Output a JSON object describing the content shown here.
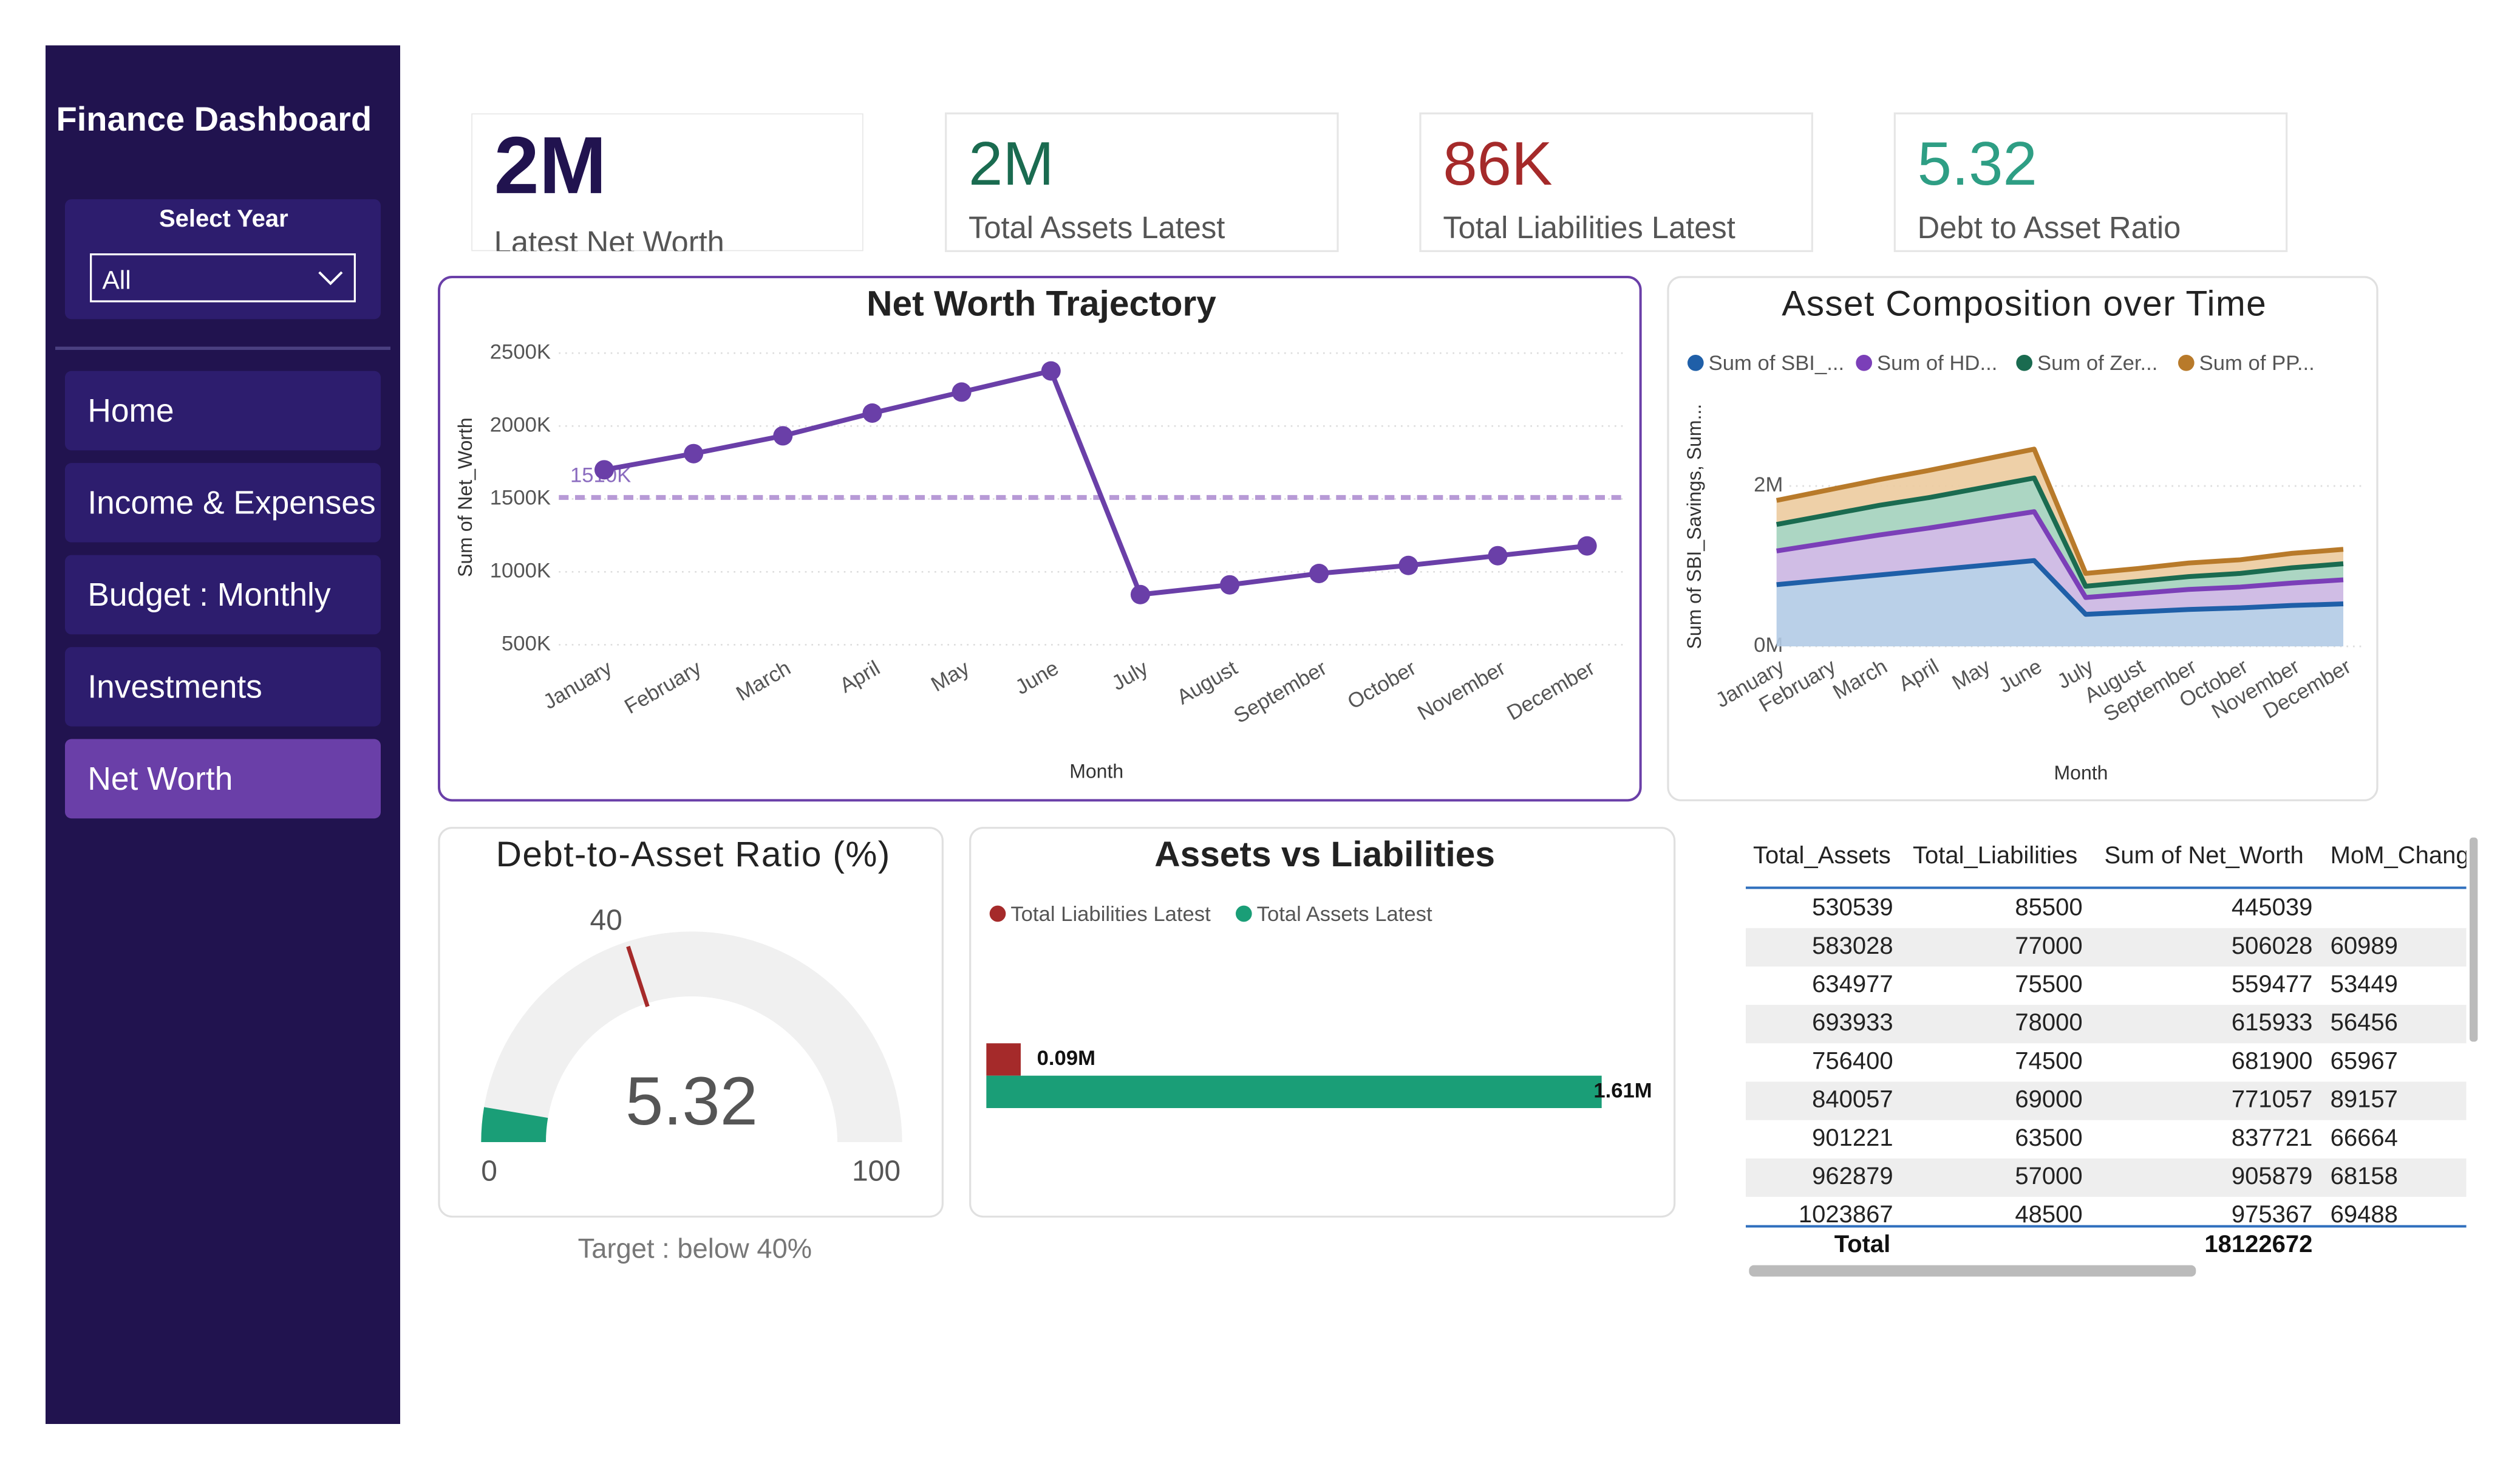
{
  "sidebar": {
    "title": "Finance Dashboard",
    "filter_label": "Select Year",
    "filter_value": "All",
    "nav": [
      "Home",
      "Income & Expenses",
      "Budget : Monthly",
      "Investments",
      "Net Worth"
    ],
    "active": 4
  },
  "kpis": [
    {
      "value": "2M",
      "label": "Latest Net Worth",
      "color": "#21134f"
    },
    {
      "value": "2M",
      "label": "Total Assets Latest",
      "color": "#1a6b50"
    },
    {
      "value": "86K",
      "label": "Total Liabilities Latest",
      "color": "#a52a2a"
    },
    {
      "value": "5.32",
      "label": "Debt to Asset Ratio",
      "color": "#2e9e84"
    }
  ],
  "chart_data": [
    {
      "type": "line",
      "title": "Net Worth Trajectory",
      "x_label": "Month",
      "y_label": "Sum of Net_Worth",
      "categories": [
        "January",
        "February",
        "March",
        "April",
        "May",
        "June",
        "July",
        "August",
        "September",
        "October",
        "November",
        "December"
      ],
      "values": [
        1700000,
        1811000,
        1933000,
        2089000,
        2233000,
        2378000,
        844000,
        911000,
        989000,
        1044000,
        1111000,
        1178000
      ],
      "color": "#6a3fa8",
      "ylim": [
        500000,
        2500000
      ],
      "yticks": [
        {
          "value": 500000,
          "label": "500K"
        },
        {
          "value": 1000000,
          "label": "1000K"
        },
        {
          "value": 1500000,
          "label": "1500K"
        },
        {
          "value": 2000000,
          "label": "2000K"
        },
        {
          "value": 2500000,
          "label": "2500K"
        }
      ],
      "reference_line": {
        "value": 1510223,
        "label": "1510K",
        "color": "#b79ad6"
      },
      "grid": true
    },
    {
      "type": "area",
      "stacked": true,
      "title": "Asset Composition over Time",
      "x_label": "Month",
      "y_label": "Sum of SBI_Savings, Sum...",
      "categories": [
        "January",
        "February",
        "March",
        "April",
        "May",
        "June",
        "July",
        "August",
        "September",
        "October",
        "November",
        "December"
      ],
      "series": [
        {
          "name": "Sum of SBI_...",
          "color": "#1f5fa8",
          "fill": "#b3cbe6",
          "values": [
            770000,
            830000,
            890000,
            950000,
            1010000,
            1070000,
            400000,
            430000,
            460000,
            480000,
            510000,
            530000
          ]
        },
        {
          "name": "Sum of HD...",
          "color": "#7b3fb8",
          "fill": "#cbb6e2",
          "values": [
            420000,
            460000,
            500000,
            530000,
            570000,
            610000,
            210000,
            230000,
            250000,
            260000,
            280000,
            300000
          ]
        },
        {
          "name": "Sum of Zer...",
          "color": "#1a6b50",
          "fill": "#a3d1bc",
          "values": [
            330000,
            350000,
            370000,
            380000,
            400000,
            420000,
            140000,
            150000,
            160000,
            170000,
            190000,
            200000
          ]
        },
        {
          "name": "Sum of PP...",
          "color": "#b87a2a",
          "fill": "#eccb9e",
          "values": [
            300000,
            310000,
            320000,
            340000,
            350000,
            360000,
            160000,
            160000,
            170000,
            170000,
            180000,
            180000
          ]
        }
      ],
      "ylim": [
        0,
        2800000
      ],
      "yticks": [
        {
          "value": 0,
          "label": "0M"
        },
        {
          "value": 2000000,
          "label": "2M"
        }
      ],
      "grid": true
    },
    {
      "type": "gauge",
      "title": "Debt-to-Asset Ratio (%)",
      "value": 5.32,
      "min": 0,
      "max": 100,
      "target": 40,
      "note": "Target : below 40%",
      "color": "#1a9e77",
      "track_color": "#f0f0f0",
      "target_color": "#a52a2a"
    },
    {
      "type": "bar",
      "orientation": "horizontal",
      "title": "Assets vs Liabilities",
      "categories": [
        "Total Liabilities Latest",
        "Total Assets Latest"
      ],
      "values": [
        90000,
        1610000
      ],
      "value_labels": [
        "0.09M",
        "1.61M"
      ],
      "colors": [
        "#a52a2a",
        "#1a9e77"
      ]
    }
  ],
  "table": {
    "columns": [
      "Total_Assets",
      "Total_Liabilities",
      "Sum of Net_Worth",
      "MoM_Change"
    ],
    "rows": [
      [
        530539,
        85500,
        445039,
        null
      ],
      [
        583028,
        77000,
        506028,
        60989
      ],
      [
        634977,
        75500,
        559477,
        53449
      ],
      [
        693933,
        78000,
        615933,
        56456
      ],
      [
        756400,
        74500,
        681900,
        65967
      ],
      [
        840057,
        69000,
        771057,
        89157
      ],
      [
        901221,
        63500,
        837721,
        66664
      ],
      [
        962879,
        57000,
        905879,
        68158
      ],
      [
        1023867,
        48500,
        975367,
        69488
      ]
    ],
    "total": [
      "Total",
      null,
      18122672,
      null
    ]
  }
}
